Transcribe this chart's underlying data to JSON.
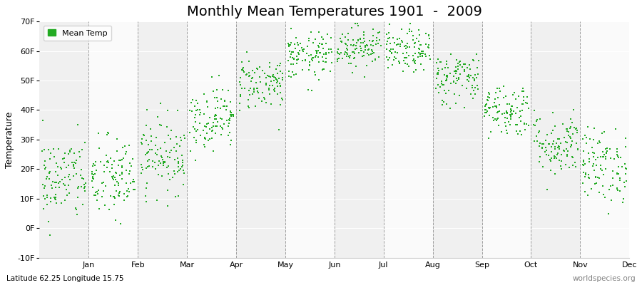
{
  "title": "Monthly Mean Temperatures 1901  -  2009",
  "ylabel": "Temperature",
  "ylim": [
    -10,
    70
  ],
  "yticks": [
    -10,
    0,
    10,
    20,
    30,
    40,
    50,
    60,
    70
  ],
  "ytick_labels": [
    "-10F",
    "0F",
    "10F",
    "20F",
    "30F",
    "40F",
    "50F",
    "60F",
    "70F"
  ],
  "months": [
    "Jan",
    "Feb",
    "Mar",
    "Apr",
    "May",
    "Jun",
    "Jul",
    "Aug",
    "Sep",
    "Oct",
    "Nov",
    "Dec"
  ],
  "dot_color": "#22aa22",
  "band_colors": [
    "#f0f0f0",
    "#fafafa"
  ],
  "title_fontsize": 14,
  "subtitle_left": "Latitude 62.25 Longitude 15.75",
  "subtitle_right": "worldspecies.org",
  "legend_label": "Mean Temp",
  "monthly_means_celsius": [
    -8.5,
    -8.5,
    -4.0,
    3.0,
    9.5,
    14.5,
    16.5,
    15.5,
    10.5,
    4.5,
    -2.0,
    -6.0
  ],
  "monthly_stds_celsius": [
    4.0,
    4.0,
    3.5,
    3.0,
    2.5,
    2.2,
    2.0,
    2.0,
    2.5,
    2.5,
    3.0,
    3.5
  ],
  "n_years": 109,
  "seed": 42,
  "dot_size": 3
}
